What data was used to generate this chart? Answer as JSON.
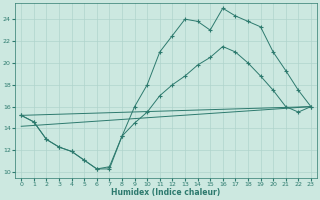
{
  "xlabel": "Humidex (Indice chaleur)",
  "background_color": "#cce8e0",
  "grid_color": "#b0d4cc",
  "line_color": "#2d7a6e",
  "xlim": [
    -0.5,
    23.5
  ],
  "ylim": [
    9.5,
    25.5
  ],
  "yticks": [
    10,
    12,
    14,
    16,
    18,
    20,
    22,
    24
  ],
  "xticks": [
    0,
    1,
    2,
    3,
    4,
    5,
    6,
    7,
    8,
    9,
    10,
    11,
    12,
    13,
    14,
    15,
    16,
    17,
    18,
    19,
    20,
    21,
    22,
    23
  ],
  "line1_x": [
    0,
    1,
    2,
    3,
    4,
    5,
    6,
    7,
    8,
    9,
    10,
    11,
    12,
    13,
    14,
    15,
    16,
    17,
    18,
    19,
    20,
    21,
    22,
    23
  ],
  "line1_y": [
    15.2,
    14.6,
    13.0,
    12.3,
    11.9,
    11.1,
    10.3,
    10.3,
    13.3,
    16.0,
    18.0,
    21.0,
    22.5,
    24.0,
    23.8,
    23.0,
    25.0,
    24.3,
    23.8,
    23.3,
    21.0,
    19.3,
    17.5,
    16.0
  ],
  "line2_x": [
    0,
    1,
    2,
    3,
    4,
    5,
    6,
    7,
    8,
    9,
    10,
    11,
    12,
    13,
    14,
    15,
    16,
    17,
    18,
    19,
    20,
    21,
    22,
    23
  ],
  "line2_y": [
    15.2,
    14.6,
    13.0,
    12.3,
    11.9,
    11.1,
    10.3,
    10.5,
    13.3,
    14.5,
    15.5,
    17.0,
    18.0,
    18.8,
    19.8,
    20.5,
    21.5,
    21.0,
    20.0,
    18.8,
    17.5,
    16.0,
    15.5,
    16.0
  ],
  "line3_x": [
    0,
    23
  ],
  "line3_y": [
    14.2,
    16.0
  ],
  "line4_x": [
    0,
    23
  ],
  "line4_y": [
    15.2,
    16.0
  ]
}
